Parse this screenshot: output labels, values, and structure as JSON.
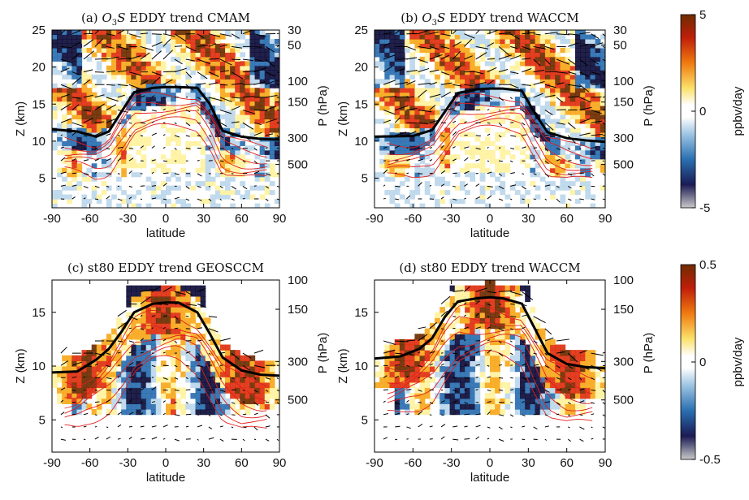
{
  "chart_data": [
    {
      "type": "heatmap",
      "panel": "a",
      "title_prefix": "(a) ",
      "title_math": "O3S",
      "title_suffix": " EDDY trend CMAM",
      "xlabel": "latitude",
      "ylabel": "Z (km)",
      "ylabel_right": "P (hPa)",
      "xlim": [
        -90,
        90
      ],
      "ylim": [
        1,
        25
      ],
      "xticks": [
        "-90",
        "-60",
        "-30",
        "0",
        "30",
        "60",
        "90"
      ],
      "yticks": [
        "5",
        "10",
        "15",
        "20",
        "25"
      ],
      "pticks": [
        "30",
        "50",
        "100",
        "150",
        "300",
        "500"
      ],
      "tropopause": [
        [
          -90,
          11.6
        ],
        [
          -70,
          11.3
        ],
        [
          -55,
          10.6
        ],
        [
          -45,
          11.3
        ],
        [
          -35,
          14.0
        ],
        [
          -25,
          16.6
        ],
        [
          -10,
          17.2
        ],
        [
          0,
          17.3
        ],
        [
          10,
          17.3
        ],
        [
          25,
          17.2
        ],
        [
          35,
          15.0
        ],
        [
          45,
          11.4
        ],
        [
          60,
          10.6
        ],
        [
          75,
          10.3
        ],
        [
          90,
          10.2
        ]
      ],
      "features": "Positive trend (red/orange) above ~15 km in tropics and midlatitudes; negative trend (blue) below and at polar latitudes."
    },
    {
      "type": "heatmap",
      "panel": "b",
      "title_prefix": "(b) ",
      "title_math": "O3S",
      "title_suffix": " EDDY trend WACCM",
      "xlabel": "latitude",
      "ylabel": "Z (km)",
      "ylabel_right": "P (hPa)",
      "xlim": [
        -90,
        90
      ],
      "ylim": [
        1,
        25
      ],
      "xticks": [
        "-90",
        "-60",
        "-30",
        "0",
        "30",
        "60",
        "90"
      ],
      "yticks": [
        "5",
        "10",
        "15",
        "20",
        "25"
      ],
      "pticks": [
        "30",
        "50",
        "100",
        "150",
        "300",
        "500"
      ],
      "tropopause": [
        [
          -90,
          10.6
        ],
        [
          -60,
          10.7
        ],
        [
          -45,
          11.5
        ],
        [
          -35,
          14.0
        ],
        [
          -25,
          16.5
        ],
        [
          -10,
          17.0
        ],
        [
          0,
          17.1
        ],
        [
          10,
          17.1
        ],
        [
          25,
          16.8
        ],
        [
          35,
          13.8
        ],
        [
          45,
          11.2
        ],
        [
          60,
          10.4
        ],
        [
          75,
          10.1
        ],
        [
          90,
          9.9
        ]
      ]
    },
    {
      "type": "heatmap",
      "panel": "c",
      "title": "(c) st80 EDDY trend GEOSCCM",
      "xlabel": "latitude",
      "ylabel": "Z (km)",
      "ylabel_right": "P (hPa)",
      "xlim": [
        -90,
        90
      ],
      "ylim": [
        2,
        18
      ],
      "xticks": [
        "-90",
        "-60",
        "-30",
        "0",
        "30",
        "60",
        "90"
      ],
      "yticks": [
        "5",
        "10",
        "15"
      ],
      "pticks": [
        "100",
        "150",
        "300",
        "500"
      ],
      "tropopause": [
        [
          -90,
          9.4
        ],
        [
          -70,
          9.5
        ],
        [
          -55,
          10.6
        ],
        [
          -45,
          11.6
        ],
        [
          -35,
          13.2
        ],
        [
          -25,
          15.0
        ],
        [
          -10,
          15.8
        ],
        [
          0,
          15.9
        ],
        [
          10,
          15.9
        ],
        [
          25,
          15.0
        ],
        [
          35,
          13.0
        ],
        [
          45,
          10.8
        ],
        [
          60,
          9.6
        ],
        [
          75,
          9.2
        ],
        [
          90,
          9.1
        ]
      ]
    },
    {
      "type": "heatmap",
      "panel": "d",
      "title": "(d) st80 EDDY trend WACCM",
      "xlabel": "latitude",
      "ylabel": "Z (km)",
      "ylabel_right": "P (hPa)",
      "xlim": [
        -90,
        90
      ],
      "ylim": [
        2,
        18
      ],
      "xticks": [
        "-90",
        "-60",
        "-30",
        "0",
        "30",
        "60",
        "90"
      ],
      "yticks": [
        "5",
        "10",
        "15"
      ],
      "pticks": [
        "100",
        "150",
        "300",
        "500"
      ],
      "tropopause": [
        [
          -90,
          10.7
        ],
        [
          -70,
          10.9
        ],
        [
          -55,
          11.6
        ],
        [
          -45,
          12.6
        ],
        [
          -35,
          14.6
        ],
        [
          -25,
          16.0
        ],
        [
          -10,
          16.3
        ],
        [
          0,
          16.4
        ],
        [
          10,
          16.3
        ],
        [
          25,
          15.8
        ],
        [
          35,
          13.5
        ],
        [
          45,
          11.2
        ],
        [
          60,
          10.2
        ],
        [
          75,
          9.9
        ],
        [
          90,
          9.8
        ]
      ]
    }
  ],
  "colorbars": [
    {
      "label": "ppbv/day",
      "ticks": [
        "5",
        "0",
        "-5"
      ],
      "range": [
        -5,
        5
      ]
    },
    {
      "label": "ppbv/day",
      "ticks": [
        "0.5",
        "0",
        "-0.5"
      ],
      "range": [
        -0.5,
        0.5
      ]
    }
  ],
  "colors": {
    "neg_dark": "#0d0d3a",
    "neg_mid": "#2a6fb0",
    "neg_light": "#bcd7ec",
    "pos_light": "#fff2a0",
    "pos_mid": "#f7a81c",
    "pos_high": "#e03010",
    "pos_dark": "#6e2c00",
    "contour": "#e02020",
    "tropopause": "#000000"
  }
}
